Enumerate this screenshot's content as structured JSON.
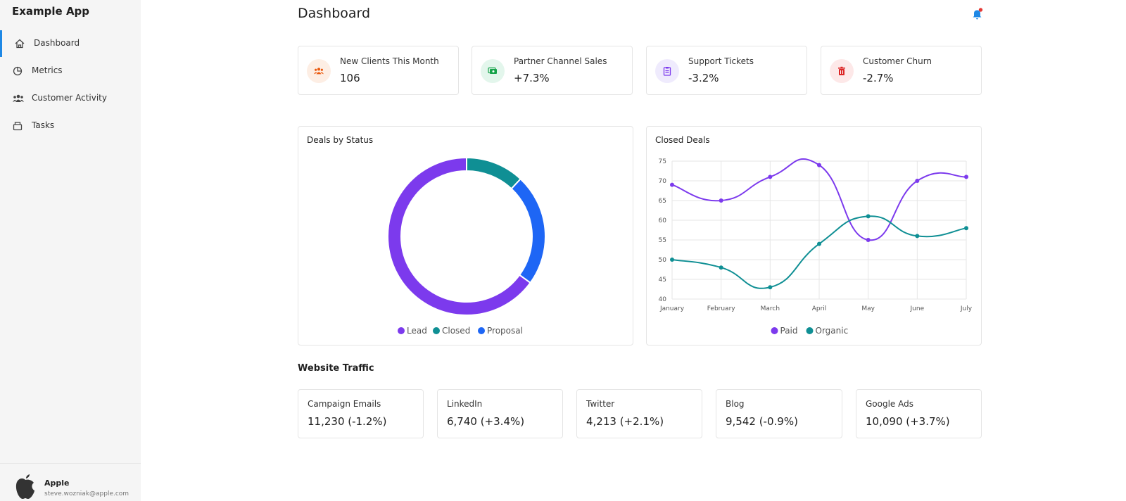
{
  "app": {
    "name": "Example App"
  },
  "nav": [
    "Dashboard",
    "Metrics",
    "Customer Activity",
    "Tasks"
  ],
  "user": {
    "name": "Apple",
    "email": "steve.wozniak@apple.com"
  },
  "header": {
    "title": "Dashboard"
  },
  "stats": [
    {
      "label": "New Clients This Month",
      "value": "106"
    },
    {
      "label": "Partner Channel Sales",
      "value": "+7.3%"
    },
    {
      "label": "Support Tickets",
      "value": "-3.2%"
    },
    {
      "label": "Customer Churn",
      "value": "-2.7%"
    }
  ],
  "chart_data": [
    {
      "type": "doughnut",
      "title": "Deals by Status",
      "categories": [
        "Lead",
        "Closed",
        "Proposal"
      ],
      "values": [
        65,
        12,
        23
      ],
      "colors": [
        "#7c3aed",
        "#0f8f94",
        "#1e66f5"
      ]
    },
    {
      "type": "line",
      "title": "Closed Deals",
      "categories": [
        "January",
        "February",
        "March",
        "April",
        "May",
        "June",
        "July"
      ],
      "series": [
        {
          "name": "Paid",
          "color": "#7c3aed",
          "values": [
            69,
            65,
            71,
            74,
            55,
            70,
            71
          ]
        },
        {
          "name": "Organic",
          "color": "#0f8f94",
          "values": [
            50,
            48,
            43,
            54,
            61,
            56,
            58
          ]
        }
      ],
      "ylim": [
        40,
        75
      ],
      "yticks": [
        40,
        45,
        50,
        55,
        60,
        65,
        70,
        75
      ],
      "grid": true
    }
  ],
  "traffic": {
    "title": "Website Traffic",
    "items": [
      {
        "label": "Campaign Emails",
        "value": "11,230 (-1.2%)"
      },
      {
        "label": "LinkedIn",
        "value": "6,740 (+3.4%)"
      },
      {
        "label": "Twitter",
        "value": "4,213 (+2.1%)"
      },
      {
        "label": "Blog",
        "value": "9,542 (-0.9%)"
      },
      {
        "label": "Google Ads",
        "value": "10,090 (+3.7%)"
      }
    ]
  }
}
